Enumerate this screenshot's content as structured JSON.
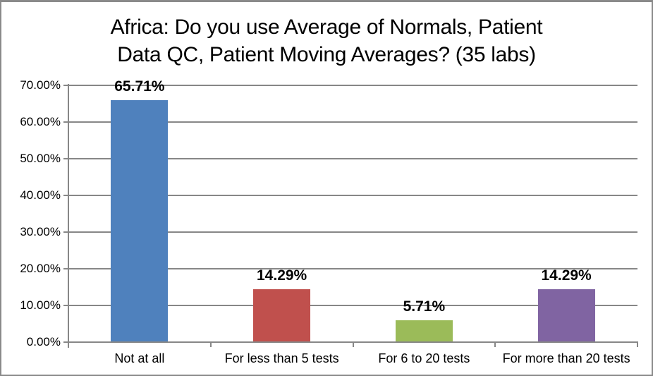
{
  "title": {
    "line1": "Africa: Do you use Average of Normals, Patient",
    "line2": "Data QC, Patient Moving Averages? (35 labs)"
  },
  "chart_data": {
    "type": "bar",
    "title": "Africa: Do you use Average of Normals, Patient Data QC, Patient Moving Averages? (35 labs)",
    "categories": [
      "Not at all",
      "For less than 5 tests",
      "For 6 to 20 tests",
      "For more than 20 tests"
    ],
    "values": [
      65.71,
      14.29,
      5.71,
      14.29
    ],
    "data_labels": [
      "65.71%",
      "14.29%",
      "5.71%",
      "14.29%"
    ],
    "bar_colors": [
      "#4F81BD",
      "#C0504D",
      "#9BBB59",
      "#8064A2"
    ],
    "ylabel": "",
    "xlabel": "",
    "ylim": [
      0,
      70
    ],
    "ytick_interval": 10,
    "ytick_labels": [
      "0.00%",
      "10.00%",
      "20.00%",
      "30.00%",
      "40.00%",
      "50.00%",
      "60.00%",
      "70.00%"
    ],
    "grid": true,
    "legend": "none",
    "colors": {
      "gridline": "#878787",
      "axis": "#878787",
      "text": "#000000",
      "background": "#FFFFFF",
      "border": "#8A8A8A"
    }
  }
}
